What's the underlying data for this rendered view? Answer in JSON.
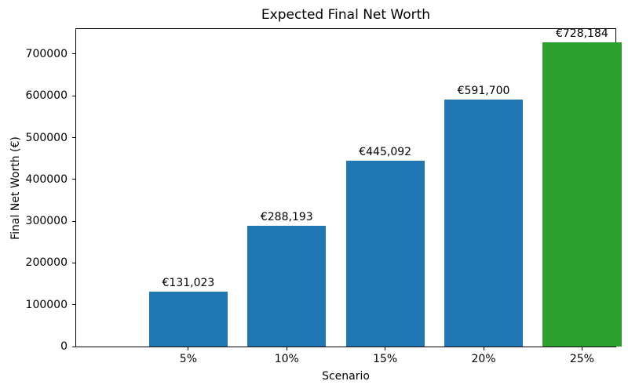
{
  "chart_data": {
    "type": "bar",
    "title": "Expected Final Net Worth",
    "xlabel": "Scenario",
    "ylabel": "Final Net Worth (€)",
    "categories": [
      "5%",
      "10%",
      "15%",
      "20%",
      "25%"
    ],
    "values": [
      131023,
      288193,
      445092,
      591700,
      728184
    ],
    "bar_labels": [
      "€131,023",
      "€288,193",
      "€445,092",
      "€591,700",
      "€728,184"
    ],
    "bar_colors": [
      "#1f77b4",
      "#1f77b4",
      "#1f77b4",
      "#1f77b4",
      "#2ca02c"
    ],
    "highlight_color": "#2ca02c",
    "default_color": "#1f77b4",
    "ylim": [
      0,
      760000
    ],
    "yticks": [
      0,
      100000,
      200000,
      300000,
      400000,
      500000,
      600000,
      700000
    ],
    "ytick_labels": [
      "0",
      "100000",
      "200000",
      "300000",
      "400000",
      "500000",
      "600000",
      "700000"
    ],
    "grid": false,
    "legend": "none",
    "bar_width_fraction": 0.8
  }
}
